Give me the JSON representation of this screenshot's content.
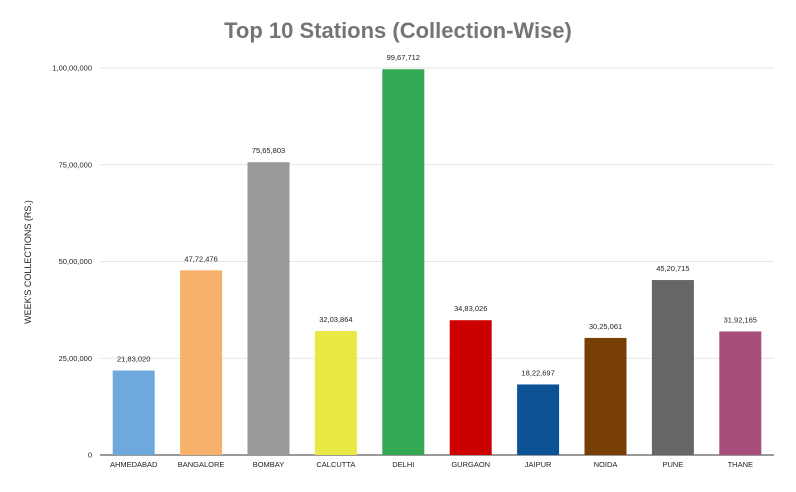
{
  "chart_data": {
    "type": "bar",
    "title": "Top 10 Stations (Collection-Wise)",
    "xlabel": "",
    "ylabel": "WEEK'S COLLECTIONS (RS.)",
    "ylim": [
      0,
      10000000
    ],
    "yticks": [
      0,
      2500000,
      5000000,
      7500000,
      10000000
    ],
    "ytick_labels": [
      "0",
      "25,00,000",
      "50,00,000",
      "75,00,000",
      "1,00,00,000"
    ],
    "grid": true,
    "legend": "none",
    "categories": [
      "AHMEDABAD",
      "BANGALORE",
      "BOMBAY",
      "CALCUTTA",
      "DELHI",
      "GURGAON",
      "JAIPUR",
      "NOIDA",
      "PUNE",
      "THANE"
    ],
    "values": [
      2183020,
      4772476,
      7565803,
      3203864,
      9967712,
      3483026,
      1822697,
      3025061,
      4520715,
      3192165
    ],
    "data_labels": [
      "21,83,020",
      "47,72,476",
      "75,65,803",
      "32,03,864",
      "99,67,712",
      "34,83,026",
      "18,22,697",
      "30,25,061",
      "45,20,715",
      "31,92,165"
    ],
    "colors": [
      "#6fa8dc",
      "#f6b26b",
      "#999999",
      "#eae845",
      "#34a853",
      "#cc0000",
      "#0b5394",
      "#783f04",
      "#666666",
      "#a64d79"
    ]
  }
}
